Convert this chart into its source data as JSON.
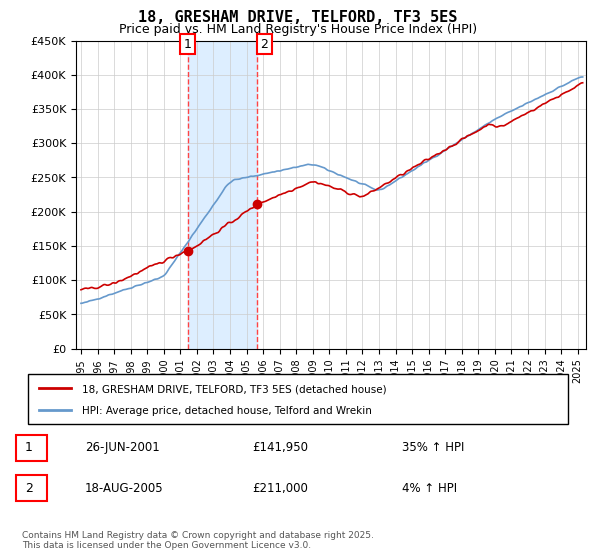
{
  "title": "18, GRESHAM DRIVE, TELFORD, TF3 5ES",
  "subtitle": "Price paid vs. HM Land Registry's House Price Index (HPI)",
  "ylabel_ticks": [
    "£0",
    "£50K",
    "£100K",
    "£150K",
    "£200K",
    "£250K",
    "£300K",
    "£350K",
    "£400K",
    "£450K"
  ],
  "ylim": [
    0,
    450000
  ],
  "xlim_start": 1995.0,
  "xlim_end": 2025.5,
  "sale1_date": 2001.48,
  "sale1_price": 141950,
  "sale1_label": "1",
  "sale1_display": "26-JUN-2001",
  "sale1_price_display": "£141,950",
  "sale1_hpi": "35% ↑ HPI",
  "sale2_date": 2005.63,
  "sale2_price": 211000,
  "sale2_label": "2",
  "sale2_display": "18-AUG-2005",
  "sale2_price_display": "£211,000",
  "sale2_hpi": "4% ↑ HPI",
  "shade_color": "#ddeeff",
  "dashed_color": "#ff4444",
  "hpi_line_color": "#6699cc",
  "price_line_color": "#cc0000",
  "legend_label1": "18, GRESHAM DRIVE, TELFORD, TF3 5ES (detached house)",
  "legend_label2": "HPI: Average price, detached house, Telford and Wrekin",
  "footnote": "Contains HM Land Registry data © Crown copyright and database right 2025.\nThis data is licensed under the Open Government Licence v3.0.",
  "background_color": "#ffffff",
  "grid_color": "#cccccc"
}
